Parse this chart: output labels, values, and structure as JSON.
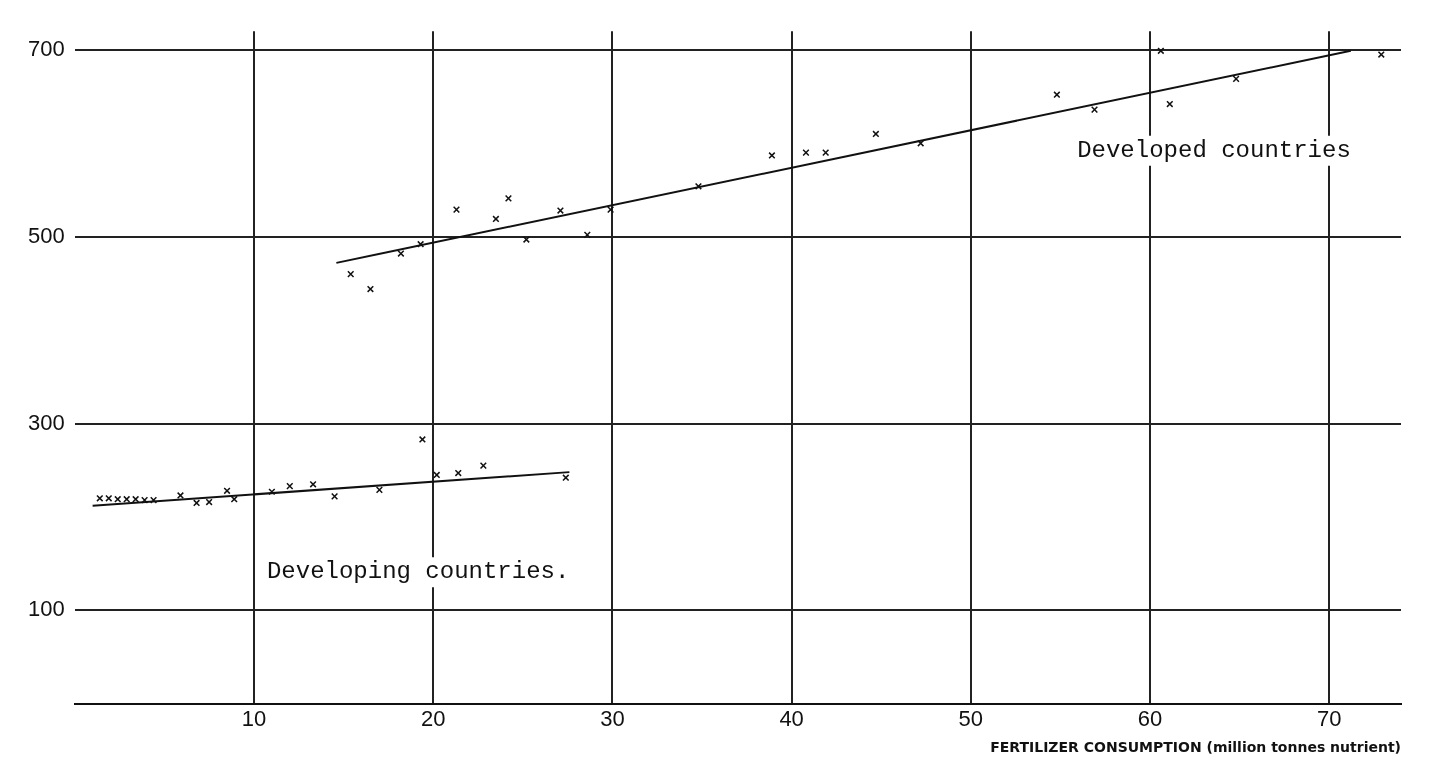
{
  "chart_data": {
    "type": "scatter",
    "xlabel": "FERTILIZER CONSUMPTION (million tonnes nutrient)",
    "xlim": [
      0,
      74
    ],
    "xticks": [
      10,
      20,
      30,
      40,
      50,
      60,
      70
    ],
    "ylim": [
      0,
      720
    ],
    "yticks": [
      100,
      300,
      500,
      700
    ],
    "grid": true,
    "legend": false,
    "marker": "cross",
    "series": [
      {
        "color": "#111111",
        "x": [
          1.4,
          1.9,
          2.4,
          2.9,
          3.4,
          3.9,
          4.4,
          5.9,
          6.8,
          7.5,
          8.5,
          8.9,
          11.0,
          12.0,
          13.3,
          14.5,
          17.0,
          19.4,
          20.2,
          21.4,
          22.8,
          27.4
        ],
        "values": [
          220,
          220,
          219,
          219,
          219,
          218,
          218,
          223,
          215,
          216,
          228,
          219,
          227,
          233,
          235,
          222,
          229,
          283,
          245,
          247,
          255,
          242
        ]
      },
      {
        "type": "line",
        "marker": "none",
        "name": "Developing countries.",
        "color": "#111111",
        "x": [
          1.0,
          27.6
        ],
        "values": [
          212,
          248
        ]
      },
      {
        "color": "#111111",
        "x": [
          15.4,
          16.5,
          18.2,
          19.3,
          21.3,
          23.5,
          24.2,
          25.2,
          27.1,
          28.6,
          29.9,
          34.8,
          38.9,
          40.8,
          41.9,
          44.7,
          47.2,
          54.8,
          56.9,
          60.6,
          61.1,
          64.8,
          72.9
        ],
        "values": [
          460,
          444,
          482,
          492,
          529,
          519,
          541,
          497,
          528,
          502,
          529,
          554,
          587,
          590,
          590,
          610,
          600,
          652,
          636,
          699,
          642,
          669,
          695
        ]
      },
      {
        "type": "line",
        "marker": "none",
        "name": "Developed countries",
        "color": "#111111",
        "x": [
          14.6,
          71.2
        ],
        "values": [
          472,
          699
        ]
      }
    ]
  }
}
